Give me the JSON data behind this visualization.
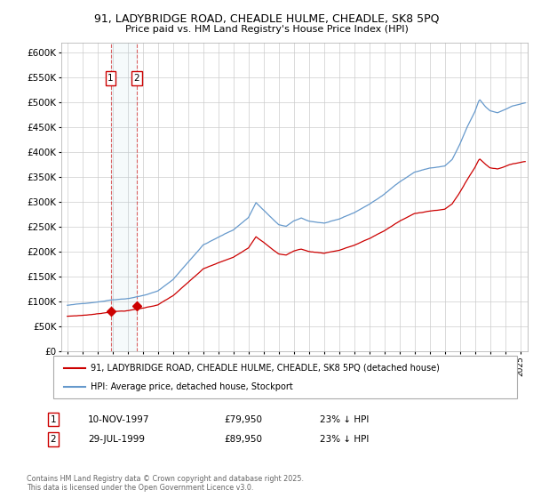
{
  "title1": "91, LADYBRIDGE ROAD, CHEADLE HULME, CHEADLE, SK8 5PQ",
  "title2": "Price paid vs. HM Land Registry's House Price Index (HPI)",
  "ylim": [
    0,
    620000
  ],
  "yticks": [
    0,
    50000,
    100000,
    150000,
    200000,
    250000,
    300000,
    350000,
    400000,
    450000,
    500000,
    550000,
    600000
  ],
  "ytick_labels": [
    "£0",
    "£50K",
    "£100K",
    "£150K",
    "£200K",
    "£250K",
    "£300K",
    "£350K",
    "£400K",
    "£450K",
    "£500K",
    "£550K",
    "£600K"
  ],
  "hpi_color": "#6699CC",
  "property_color": "#CC0000",
  "sale1_date": 1997.87,
  "sale1_price": 79950,
  "sale2_date": 1999.58,
  "sale2_price": 89950,
  "legend_property": "91, LADYBRIDGE ROAD, CHEADLE HULME, CHEADLE, SK8 5PQ (detached house)",
  "legend_hpi": "HPI: Average price, detached house, Stockport",
  "annotation1_label": "1",
  "annotation1_text": "10-NOV-1997",
  "annotation1_price": "£79,950",
  "annotation1_hpi": "23% ↓ HPI",
  "annotation2_label": "2",
  "annotation2_text": "29-JUL-1999",
  "annotation2_price": "£89,950",
  "annotation2_hpi": "23% ↓ HPI",
  "footer": "Contains HM Land Registry data © Crown copyright and database right 2025.\nThis data is licensed under the Open Government Licence v3.0.",
  "background_color": "#FFFFFF",
  "grid_color": "#CCCCCC"
}
